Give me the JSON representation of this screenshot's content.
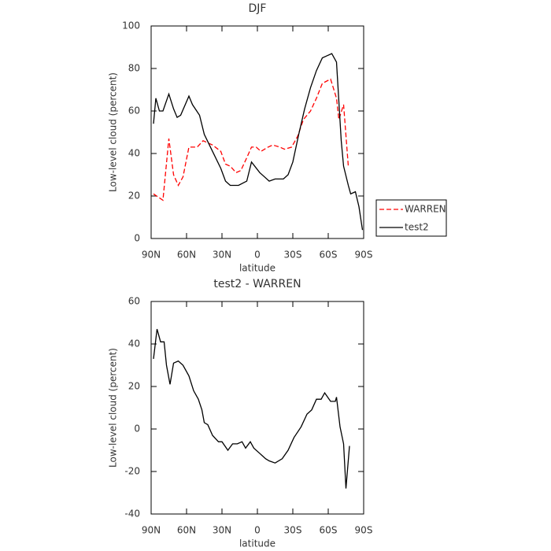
{
  "chart_data": [
    {
      "type": "line",
      "title": "DJF",
      "xlabel": "latitude",
      "ylabel": "Low-level cloud (percent)",
      "xlim": [
        90,
        -90
      ],
      "xticks": [
        {
          "value": 90,
          "label": "90N"
        },
        {
          "value": 60,
          "label": "60N"
        },
        {
          "value": 30,
          "label": "30N"
        },
        0,
        {
          "value": -30,
          "label": "30S"
        },
        {
          "value": -60,
          "label": "60S"
        },
        {
          "value": -90,
          "label": "90S"
        }
      ],
      "ylim": [
        0,
        100
      ],
      "yticks": [
        0,
        20,
        40,
        60,
        80,
        100
      ],
      "legend": "right",
      "series": [
        {
          "name": "WARREN",
          "color": "#ff0000",
          "style": "dashed",
          "x": [
            88,
            80,
            75,
            71,
            67,
            63,
            58,
            51,
            46,
            38,
            31,
            27,
            23,
            18,
            14,
            9,
            5,
            1,
            -3,
            -9,
            -13,
            -19,
            -23,
            -29,
            -34,
            -39,
            -45,
            -50,
            -55,
            -62,
            -67,
            -69,
            -73,
            -77
          ],
          "values": [
            21,
            18,
            47,
            30,
            25,
            29,
            43,
            43,
            46,
            44,
            41,
            35,
            34,
            31,
            32,
            38,
            43,
            43,
            41,
            43,
            44,
            43,
            42,
            43,
            48,
            56,
            60,
            66,
            73,
            75,
            66,
            56,
            63,
            34
          ]
        },
        {
          "name": "test2",
          "color": "#000000",
          "style": "solid",
          "x": [
            88,
            86,
            83,
            80,
            75,
            71,
            68,
            65,
            58,
            55,
            49,
            45,
            38,
            31,
            27,
            23,
            16,
            9,
            5,
            -2,
            -6,
            -10,
            -15,
            -22,
            -26,
            -30,
            -35,
            -40,
            -45,
            -50,
            -55,
            -59,
            -63,
            -67,
            -71,
            -73,
            -77,
            -79,
            -83,
            -86,
            -89
          ],
          "values": [
            54,
            66,
            60,
            60,
            68,
            61,
            57,
            58,
            67,
            63,
            58,
            49,
            41,
            33,
            27,
            25,
            25,
            27,
            36,
            31,
            29,
            27,
            28,
            28,
            30,
            36,
            49,
            61,
            71,
            79,
            85,
            86,
            87,
            83,
            46,
            34,
            25,
            21,
            22,
            15,
            4
          ]
        }
      ]
    },
    {
      "type": "line",
      "title": "test2 - WARREN",
      "xlabel": "latitude",
      "ylabel": "Low-level cloud (percent)",
      "xlim": [
        90,
        -90
      ],
      "xticks": [
        {
          "value": 90,
          "label": "90N"
        },
        {
          "value": 60,
          "label": "60N"
        },
        {
          "value": 30,
          "label": "30N"
        },
        0,
        {
          "value": -30,
          "label": "30S"
        },
        {
          "value": -60,
          "label": "60S"
        },
        {
          "value": -90,
          "label": "90S"
        }
      ],
      "ylim": [
        -40,
        60
      ],
      "yticks": [
        -40,
        -20,
        0,
        20,
        40,
        60
      ],
      "series": [
        {
          "color": "#000000",
          "style": "solid",
          "x": [
            88,
            85,
            82,
            79,
            77,
            74,
            71,
            67,
            63,
            58,
            54,
            50,
            47,
            45,
            42,
            38,
            33,
            30,
            25,
            21,
            17,
            13,
            10,
            6,
            3,
            -1,
            -5,
            -7,
            -10,
            -15,
            -21,
            -26,
            -31,
            -37,
            -42,
            -46,
            -50,
            -54,
            -57,
            -62,
            -66,
            -67,
            -70,
            -73,
            -75,
            -78
          ],
          "values": [
            33,
            47,
            41,
            41,
            30,
            21,
            31,
            32,
            30,
            25,
            18,
            14,
            9,
            3,
            2,
            -3,
            -6,
            -6,
            -10,
            -7,
            -7,
            -6,
            -9,
            -6,
            -9,
            -11,
            -13,
            -14,
            -15,
            -16,
            -14,
            -10,
            -4,
            1,
            7,
            9,
            14,
            14,
            17,
            13,
            13,
            15,
            1,
            -7,
            -28,
            -8
          ]
        }
      ]
    }
  ]
}
